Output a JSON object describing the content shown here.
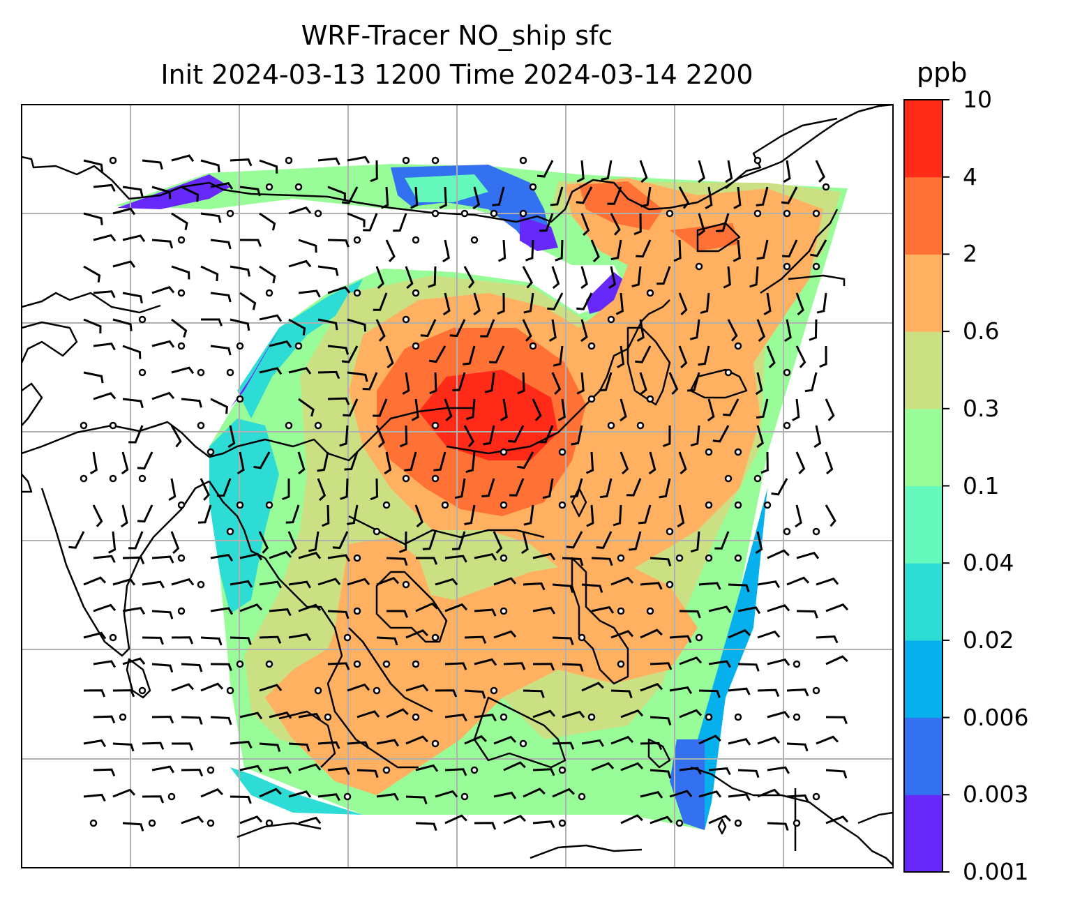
{
  "title": {
    "line1": "WRF-Tracer NO_ship sfc",
    "line2": "Init 2024-03-13 1200 Time 2024-03-14 2200"
  },
  "colorbar": {
    "unit": "ppb",
    "levels": [
      "0.001",
      "0.003",
      "0.006",
      "0.02",
      "0.04",
      "0.1",
      "0.3",
      "0.6",
      "2",
      "4",
      "10"
    ],
    "colors": [
      "#6629fa",
      "#3471f0",
      "#06b0ec",
      "#2ddcd4",
      "#66f9bd",
      "#98fc98",
      "#cbe083",
      "#ffb060",
      "#ff7134",
      "#ff2a17"
    ]
  },
  "map": {
    "variable": "NO_ship",
    "level": "sfc",
    "gridlines": true,
    "coastline_color": "#000000",
    "gridline_color": "#b0b0b0",
    "wind_barbs": true
  }
}
